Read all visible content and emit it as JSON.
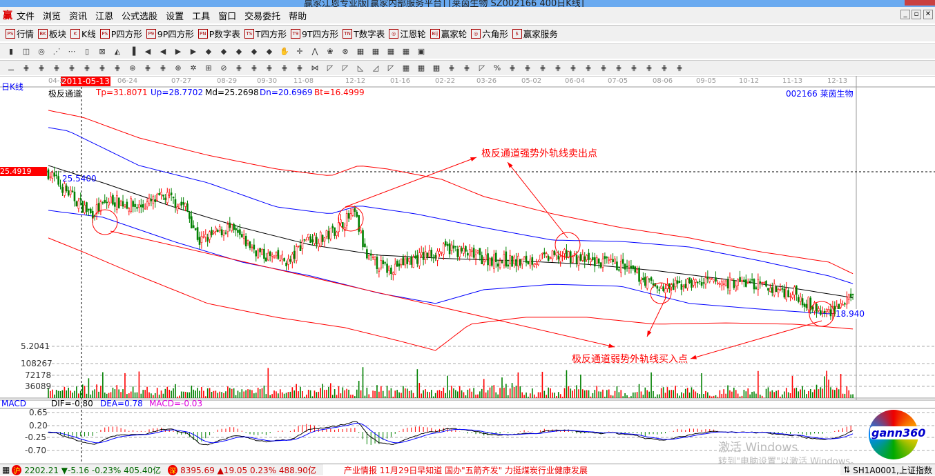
{
  "window": {
    "title": "赢家江恩专业版[赢家内部服务平台]  [莱茵生物 SZ002166 400日K线]"
  },
  "menu": [
    "文件",
    "浏览",
    "资讯",
    "江恩",
    "公式选股",
    "设置",
    "工具",
    "窗口",
    "交易委托",
    "帮助"
  ],
  "toolbar1": [
    {
      "icon": "PS",
      "label": "行情"
    },
    {
      "icon": "BK",
      "label": "板块"
    },
    {
      "icon": "K",
      "label": "K线"
    },
    {
      "icon": "PS",
      "label": "P四方形"
    },
    {
      "icon": "P9",
      "label": "9P四方形"
    },
    {
      "icon": "PN",
      "label": "P数字表"
    },
    {
      "icon": "TS",
      "label": "T四方形"
    },
    {
      "icon": "T9",
      "label": "9T四方形"
    },
    {
      "icon": "TN",
      "label": "T数字表"
    },
    {
      "icon": "◎",
      "label": "江恩轮"
    },
    {
      "icon": "Bij",
      "label": "赢家轮"
    },
    {
      "icon": "◎",
      "label": "六角形"
    },
    {
      "icon": "$",
      "label": "赢家服务"
    }
  ],
  "chart": {
    "period_label": "日K线",
    "cursor_date": "2011-05-13",
    "x_dates": [
      "04-2",
      "06-24",
      "07-27",
      "08-29",
      "09-30",
      "11-08",
      "12-12",
      "01-16",
      "02-22",
      "03-26",
      "05-02",
      "06-04",
      "07-05",
      "08-06",
      "09-05",
      "10-12",
      "11-13",
      "12-13"
    ],
    "indicator": {
      "name": "极反通道",
      "tp": "Tp=31.8071",
      "up": "Up=28.7702",
      "md": "Md=25.2698",
      "dn": "Dn=20.6969",
      "bt": "Bt=16.4999"
    },
    "stock": "002166  莱茵生物",
    "cursor_price": "25.4919",
    "price_label_high": "25.5400",
    "price_label_low": "18.940",
    "annotation_sell": "极反通道强势外轨线卖出点",
    "annotation_buy": "极反通道弱势外轨线买入点",
    "colors": {
      "up": "#ff0000",
      "down": "#008000",
      "upper_band": "#0000ff",
      "outer_band": "#ff0000",
      "mid": "#000000"
    }
  },
  "chart_data": {
    "type": "line",
    "bars": 400,
    "close": [
      [
        0,
        25.46
      ],
      [
        10,
        24.5
      ],
      [
        21,
        23.54
      ],
      [
        31,
        24.18
      ],
      [
        45,
        23.86
      ],
      [
        58,
        24.34
      ],
      [
        68,
        23.86
      ],
      [
        75,
        22.26
      ],
      [
        89,
        22.9
      ],
      [
        106,
        21.62
      ],
      [
        120,
        21.3
      ],
      [
        127,
        22.42
      ],
      [
        137,
        22.42
      ],
      [
        147,
        23.22
      ],
      [
        152,
        23.54
      ],
      [
        158,
        21.46
      ],
      [
        168,
        20.98
      ],
      [
        182,
        21.46
      ],
      [
        199,
        21.94
      ],
      [
        216,
        21.46
      ],
      [
        233,
        21.3
      ],
      [
        257,
        21.62
      ],
      [
        267,
        21.36
      ],
      [
        284,
        21.14
      ],
      [
        298,
        20.34
      ],
      [
        305,
        20.02
      ],
      [
        318,
        20.34
      ],
      [
        346,
        20.34
      ],
      [
        370,
        19.86
      ],
      [
        384,
        18.9
      ],
      [
        400,
        19.63
      ]
    ],
    "series": [
      {
        "key": "tp",
        "values": [
          [
            0,
            28.34
          ],
          [
            17,
            28.02
          ],
          [
            45,
            27.06
          ],
          [
            79,
            26.26
          ],
          [
            113,
            25.62
          ],
          [
            140,
            25.3
          ],
          [
            154,
            25.78
          ],
          [
            168,
            25.62
          ],
          [
            195,
            25.14
          ],
          [
            216,
            24.34
          ],
          [
            250,
            23.54
          ],
          [
            284,
            22.9
          ],
          [
            318,
            22.42
          ],
          [
            353,
            21.78
          ],
          [
            387,
            21.3
          ],
          [
            400,
            20.72
          ]
        ]
      },
      {
        "key": "up",
        "values": [
          [
            0,
            27.54
          ],
          [
            10,
            27.38
          ],
          [
            45,
            25.78
          ],
          [
            79,
            24.98
          ],
          [
            113,
            23.86
          ],
          [
            140,
            23.54
          ],
          [
            154,
            23.92
          ],
          [
            182,
            23.54
          ],
          [
            216,
            22.9
          ],
          [
            250,
            22.32
          ],
          [
            284,
            22.26
          ],
          [
            318,
            22.0
          ],
          [
            353,
            21.36
          ],
          [
            387,
            20.66
          ],
          [
            400,
            20.27
          ]
        ]
      },
      {
        "key": "md",
        "values": [
          [
            0,
            25.78
          ],
          [
            27,
            24.98
          ],
          [
            62,
            23.86
          ],
          [
            96,
            22.9
          ],
          [
            130,
            22.1
          ],
          [
            164,
            21.62
          ],
          [
            199,
            21.46
          ],
          [
            233,
            21.36
          ],
          [
            267,
            21.2
          ],
          [
            301,
            20.91
          ],
          [
            336,
            20.5
          ],
          [
            370,
            20.08
          ],
          [
            400,
            19.63
          ]
        ]
      },
      {
        "key": "dn",
        "values": [
          [
            0,
            23.7
          ],
          [
            27,
            23.38
          ],
          [
            62,
            22.26
          ],
          [
            96,
            21.3
          ],
          [
            130,
            20.66
          ],
          [
            164,
            19.86
          ],
          [
            192,
            19.38
          ],
          [
            216,
            20.02
          ],
          [
            250,
            20.27
          ],
          [
            284,
            20.18
          ],
          [
            318,
            19.38
          ],
          [
            353,
            19.12
          ],
          [
            387,
            18.9
          ],
          [
            400,
            19.0
          ]
        ]
      },
      {
        "key": "bt",
        "values": [
          [
            0,
            22.42
          ],
          [
            17,
            21.78
          ],
          [
            45,
            20.66
          ],
          [
            79,
            19.38
          ],
          [
            113,
            18.74
          ],
          [
            147,
            18.26
          ],
          [
            175,
            17.62
          ],
          [
            192,
            17.2
          ],
          [
            209,
            18.42
          ],
          [
            236,
            18.74
          ],
          [
            267,
            18.74
          ],
          [
            301,
            18.42
          ],
          [
            336,
            18.48
          ],
          [
            370,
            18.42
          ],
          [
            400,
            18.19
          ]
        ]
      }
    ]
  },
  "volume": {
    "axis": [
      "5.2041",
      "108267",
      "72178",
      "36089"
    ]
  },
  "macd": {
    "title": "MACD",
    "dif": "DIF=-0.80",
    "dea": "DEA=0.78",
    "macd": "MACD=-0.03",
    "axis": [
      "0.65",
      "0.20",
      "-0.25",
      "-0.70"
    ]
  },
  "logo": "gann360",
  "watermark": {
    "line1": "激活 Windows",
    "line2": "转到\"电脑设置\"以激活 Windows。"
  },
  "status": {
    "sh": "2202.21 ▼-5.16 -0.23% 405.40亿",
    "sz": "8395.69 ▲19.05 0.23% 488.90亿",
    "news": "产业情报      11月29日早知道      国办\"五箭齐发\" 力挺煤炭行业健康发展",
    "code": "SH1A0001,上证指数"
  }
}
